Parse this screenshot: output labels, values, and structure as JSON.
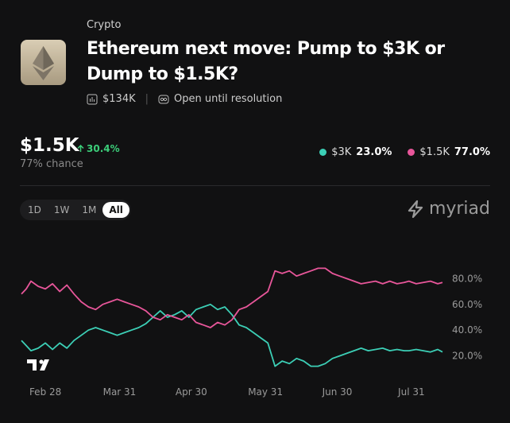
{
  "header": {
    "category": "Crypto",
    "title": "Ethereum next move: Pump to $3K or Dump to $1.5K?",
    "volume": "$134K",
    "status": "Open until resolution"
  },
  "summary": {
    "outcome": "$1.5K",
    "change": "30.4%",
    "chance": "77% chance"
  },
  "controls": {
    "ranges": [
      "1D",
      "1W",
      "1M",
      "All"
    ],
    "active_range": 3,
    "brand": "myriad"
  },
  "chart_data": {
    "type": "line",
    "x": [
      -10,
      -8,
      -6,
      -3,
      0,
      3,
      6,
      9,
      12,
      15,
      18,
      21,
      24,
      27,
      30,
      33,
      36,
      39,
      42,
      45,
      48,
      51,
      54,
      57,
      60,
      63,
      66,
      69,
      72,
      75,
      78,
      81,
      84,
      87,
      90,
      93,
      96,
      99,
      102,
      105,
      108,
      111,
      114,
      117,
      120,
      123,
      126,
      129,
      132,
      135,
      138,
      141,
      144,
      147,
      150,
      152,
      155,
      158,
      161,
      164,
      166
    ],
    "xlim": [
      -10,
      167
    ],
    "xticks": [
      {
        "value": 0,
        "label": "Feb 28"
      },
      {
        "value": 31,
        "label": "Mar 31"
      },
      {
        "value": 61,
        "label": "Apr 30"
      },
      {
        "value": 92,
        "label": "May 31"
      },
      {
        "value": 122,
        "label": "Jun 30"
      },
      {
        "value": 153,
        "label": "Jul 31"
      }
    ],
    "ylim": [
      0,
      100
    ],
    "yticks": [
      {
        "value": 20,
        "label": "20.0%"
      },
      {
        "value": 40,
        "label": "40.0%"
      },
      {
        "value": 60,
        "label": "60.0%"
      },
      {
        "value": 80,
        "label": "80.0%"
      }
    ],
    "series": [
      {
        "name": "$3K",
        "color": "#3ccfb6",
        "chance_label": "23.0%",
        "values": [
          32,
          28,
          24,
          26,
          30,
          25,
          30,
          26,
          32,
          36,
          40,
          42,
          40,
          38,
          36,
          38,
          40,
          42,
          45,
          50,
          55,
          50,
          52,
          55,
          50,
          56,
          58,
          60,
          56,
          58,
          52,
          44,
          42,
          38,
          34,
          30,
          12,
          16,
          14,
          18,
          16,
          12,
          12,
          14,
          18,
          20,
          22,
          24,
          26,
          24,
          25,
          26,
          24,
          25,
          24,
          24,
          25,
          24,
          23,
          25,
          23
        ]
      },
      {
        "name": "$1.5K",
        "color": "#e8569a",
        "chance_label": "77.0%",
        "values": [
          68,
          72,
          78,
          74,
          72,
          76,
          70,
          75,
          68,
          62,
          58,
          56,
          60,
          62,
          64,
          62,
          60,
          58,
          55,
          50,
          48,
          52,
          50,
          48,
          52,
          46,
          44,
          42,
          46,
          44,
          48,
          56,
          58,
          62,
          66,
          70,
          86,
          84,
          86,
          82,
          84,
          86,
          88,
          88,
          84,
          82,
          80,
          78,
          76,
          77,
          78,
          76,
          78,
          76,
          77,
          78,
          76,
          77,
          78,
          76,
          77
        ]
      }
    ]
  }
}
